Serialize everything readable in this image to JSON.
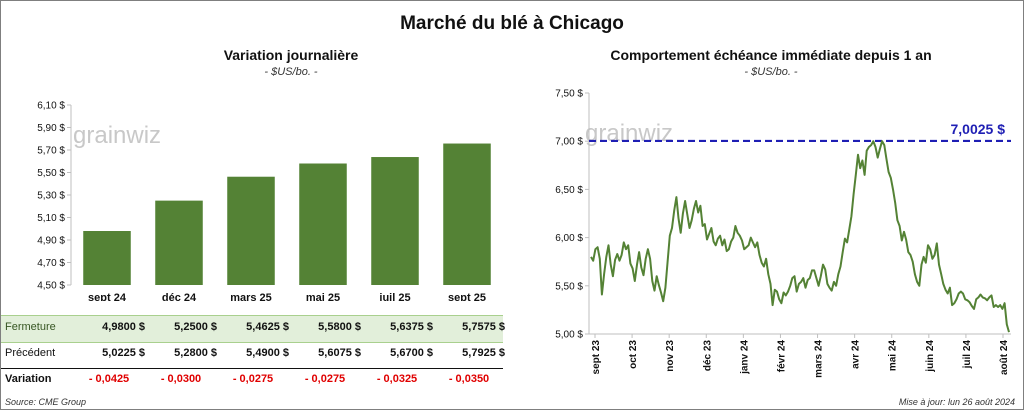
{
  "title": "Marché du blé à Chicago",
  "colors": {
    "bar": "#548235",
    "line": "#548235",
    "ref_line": "#1f1fb4",
    "row_highlight": "#e2efda",
    "negative": "#e00000"
  },
  "left_chart": {
    "title": "Variation journalière",
    "unit": "- $US/bo. -",
    "watermark": "grainwiz"
  },
  "right_chart": {
    "title": "Comportement échéance immédiate depuis 1 an",
    "unit": "- $US/bo. -",
    "watermark": "grainwiz",
    "ref_label": "7,0025 $"
  },
  "table": {
    "rows": [
      {
        "label": "Fermeture",
        "values": [
          "4,9800 $",
          "5,2500 $",
          "5,4625 $",
          "5,5800 $",
          "5,6375 $",
          "5,7575 $"
        ]
      },
      {
        "label": "Précédent",
        "values": [
          "5,0225 $",
          "5,2800 $",
          "5,4900 $",
          "5,6075 $",
          "5,6700 $",
          "5,7925 $"
        ]
      },
      {
        "label": "Variation",
        "values": [
          "- 0,0425",
          "- 0,0300",
          "- 0,0275",
          "- 0,0275",
          "- 0,0325",
          "- 0,0350"
        ]
      }
    ]
  },
  "footer": {
    "source": "Source: CME Group",
    "updated": "Mise à jour: lun 26 août 2024"
  },
  "chart_data": [
    {
      "type": "bar",
      "title": "Variation journalière",
      "ylabel": "- $US/bo. -",
      "categories": [
        "sept 24",
        "déc 24",
        "mars 25",
        "mai 25",
        "juil 25",
        "sept 25"
      ],
      "values": [
        4.98,
        5.25,
        5.4625,
        5.58,
        5.6375,
        5.7575
      ],
      "ylim": [
        4.5,
        6.1
      ],
      "yticks": [
        "4,50 $",
        "4,70 $",
        "4,90 $",
        "5,10 $",
        "5,30 $",
        "5,50 $",
        "5,70 $",
        "5,90 $",
        "6,10 $"
      ],
      "grid": false
    },
    {
      "type": "line",
      "title": "Comportement échéance immédiate depuis 1 an",
      "ylabel": "- $US/bo. -",
      "ylim": [
        5.0,
        7.5
      ],
      "yticks": [
        "5,00 $",
        "5,50 $",
        "6,00 $",
        "6,50 $",
        "7,00 $",
        "7,50 $"
      ],
      "xticks": [
        "sept 23",
        "oct 23",
        "nov 23",
        "déc 23",
        "janv 24",
        "févr 24",
        "mars 24",
        "avr 24",
        "mai 24",
        "juin 24",
        "juil 24",
        "août 24"
      ],
      "reference": {
        "value": 7.0025,
        "label": "7,0025 $"
      },
      "series": [
        {
          "values": [
            5.8,
            5.76,
            5.88,
            5.9,
            5.78,
            5.41,
            5.62,
            5.8,
            5.92,
            5.72,
            5.6,
            5.77,
            5.83,
            5.76,
            5.82,
            5.95,
            5.88,
            5.92,
            5.73,
            5.68,
            5.55,
            5.72,
            5.85,
            5.69,
            5.61,
            5.78,
            5.88,
            5.78,
            5.55,
            5.45,
            5.6,
            5.51,
            5.43,
            5.34,
            5.48,
            5.75,
            6.02,
            6.1,
            6.28,
            6.42,
            6.2,
            6.05,
            6.25,
            6.38,
            6.24,
            6.1,
            6.18,
            6.3,
            6.38,
            6.26,
            6.33,
            6.12,
            6.14,
            5.98,
            6.04,
            6.1,
            5.96,
            5.92,
            5.99,
            6.02,
            5.92,
            5.98,
            5.86,
            5.88,
            5.96,
            6.0,
            6.12,
            6.05,
            6.02,
            5.97,
            5.88,
            5.9,
            5.92,
            6.0,
            5.95,
            5.9,
            5.95,
            5.82,
            5.74,
            5.7,
            5.78,
            5.62,
            5.52,
            5.3,
            5.46,
            5.44,
            5.36,
            5.32,
            5.43,
            5.4,
            5.44,
            5.5,
            5.58,
            5.6,
            5.44,
            5.52,
            5.54,
            5.58,
            5.48,
            5.56,
            5.58,
            5.66,
            5.66,
            5.58,
            5.5,
            5.6,
            5.72,
            5.67,
            5.52,
            5.48,
            5.45,
            5.54,
            5.5,
            5.62,
            5.7,
            5.85,
            5.99,
            5.95,
            6.08,
            6.22,
            6.45,
            6.65,
            6.86,
            6.72,
            6.8,
            6.65,
            6.9,
            6.94,
            6.96,
            7.0,
            6.94,
            6.83,
            6.92,
            7.0,
            6.96,
            6.82,
            6.68,
            6.62,
            6.5,
            6.36,
            6.18,
            6.12,
            5.97,
            6.06,
            5.98,
            5.85,
            5.82,
            5.75,
            5.62,
            5.54,
            5.5,
            5.72,
            5.8,
            5.74,
            5.92,
            5.88,
            5.78,
            5.82,
            5.94,
            5.72,
            5.62,
            5.52,
            5.46,
            5.42,
            5.48,
            5.3,
            5.32,
            5.36,
            5.42,
            5.44,
            5.42,
            5.36,
            5.35,
            5.33,
            5.29,
            5.26,
            5.36,
            5.38,
            5.41,
            5.38,
            5.37,
            5.35,
            5.38,
            5.4,
            5.28,
            5.3,
            5.28,
            5.3,
            5.26,
            5.32,
            5.1,
            5.02
          ]
        }
      ]
    }
  ]
}
